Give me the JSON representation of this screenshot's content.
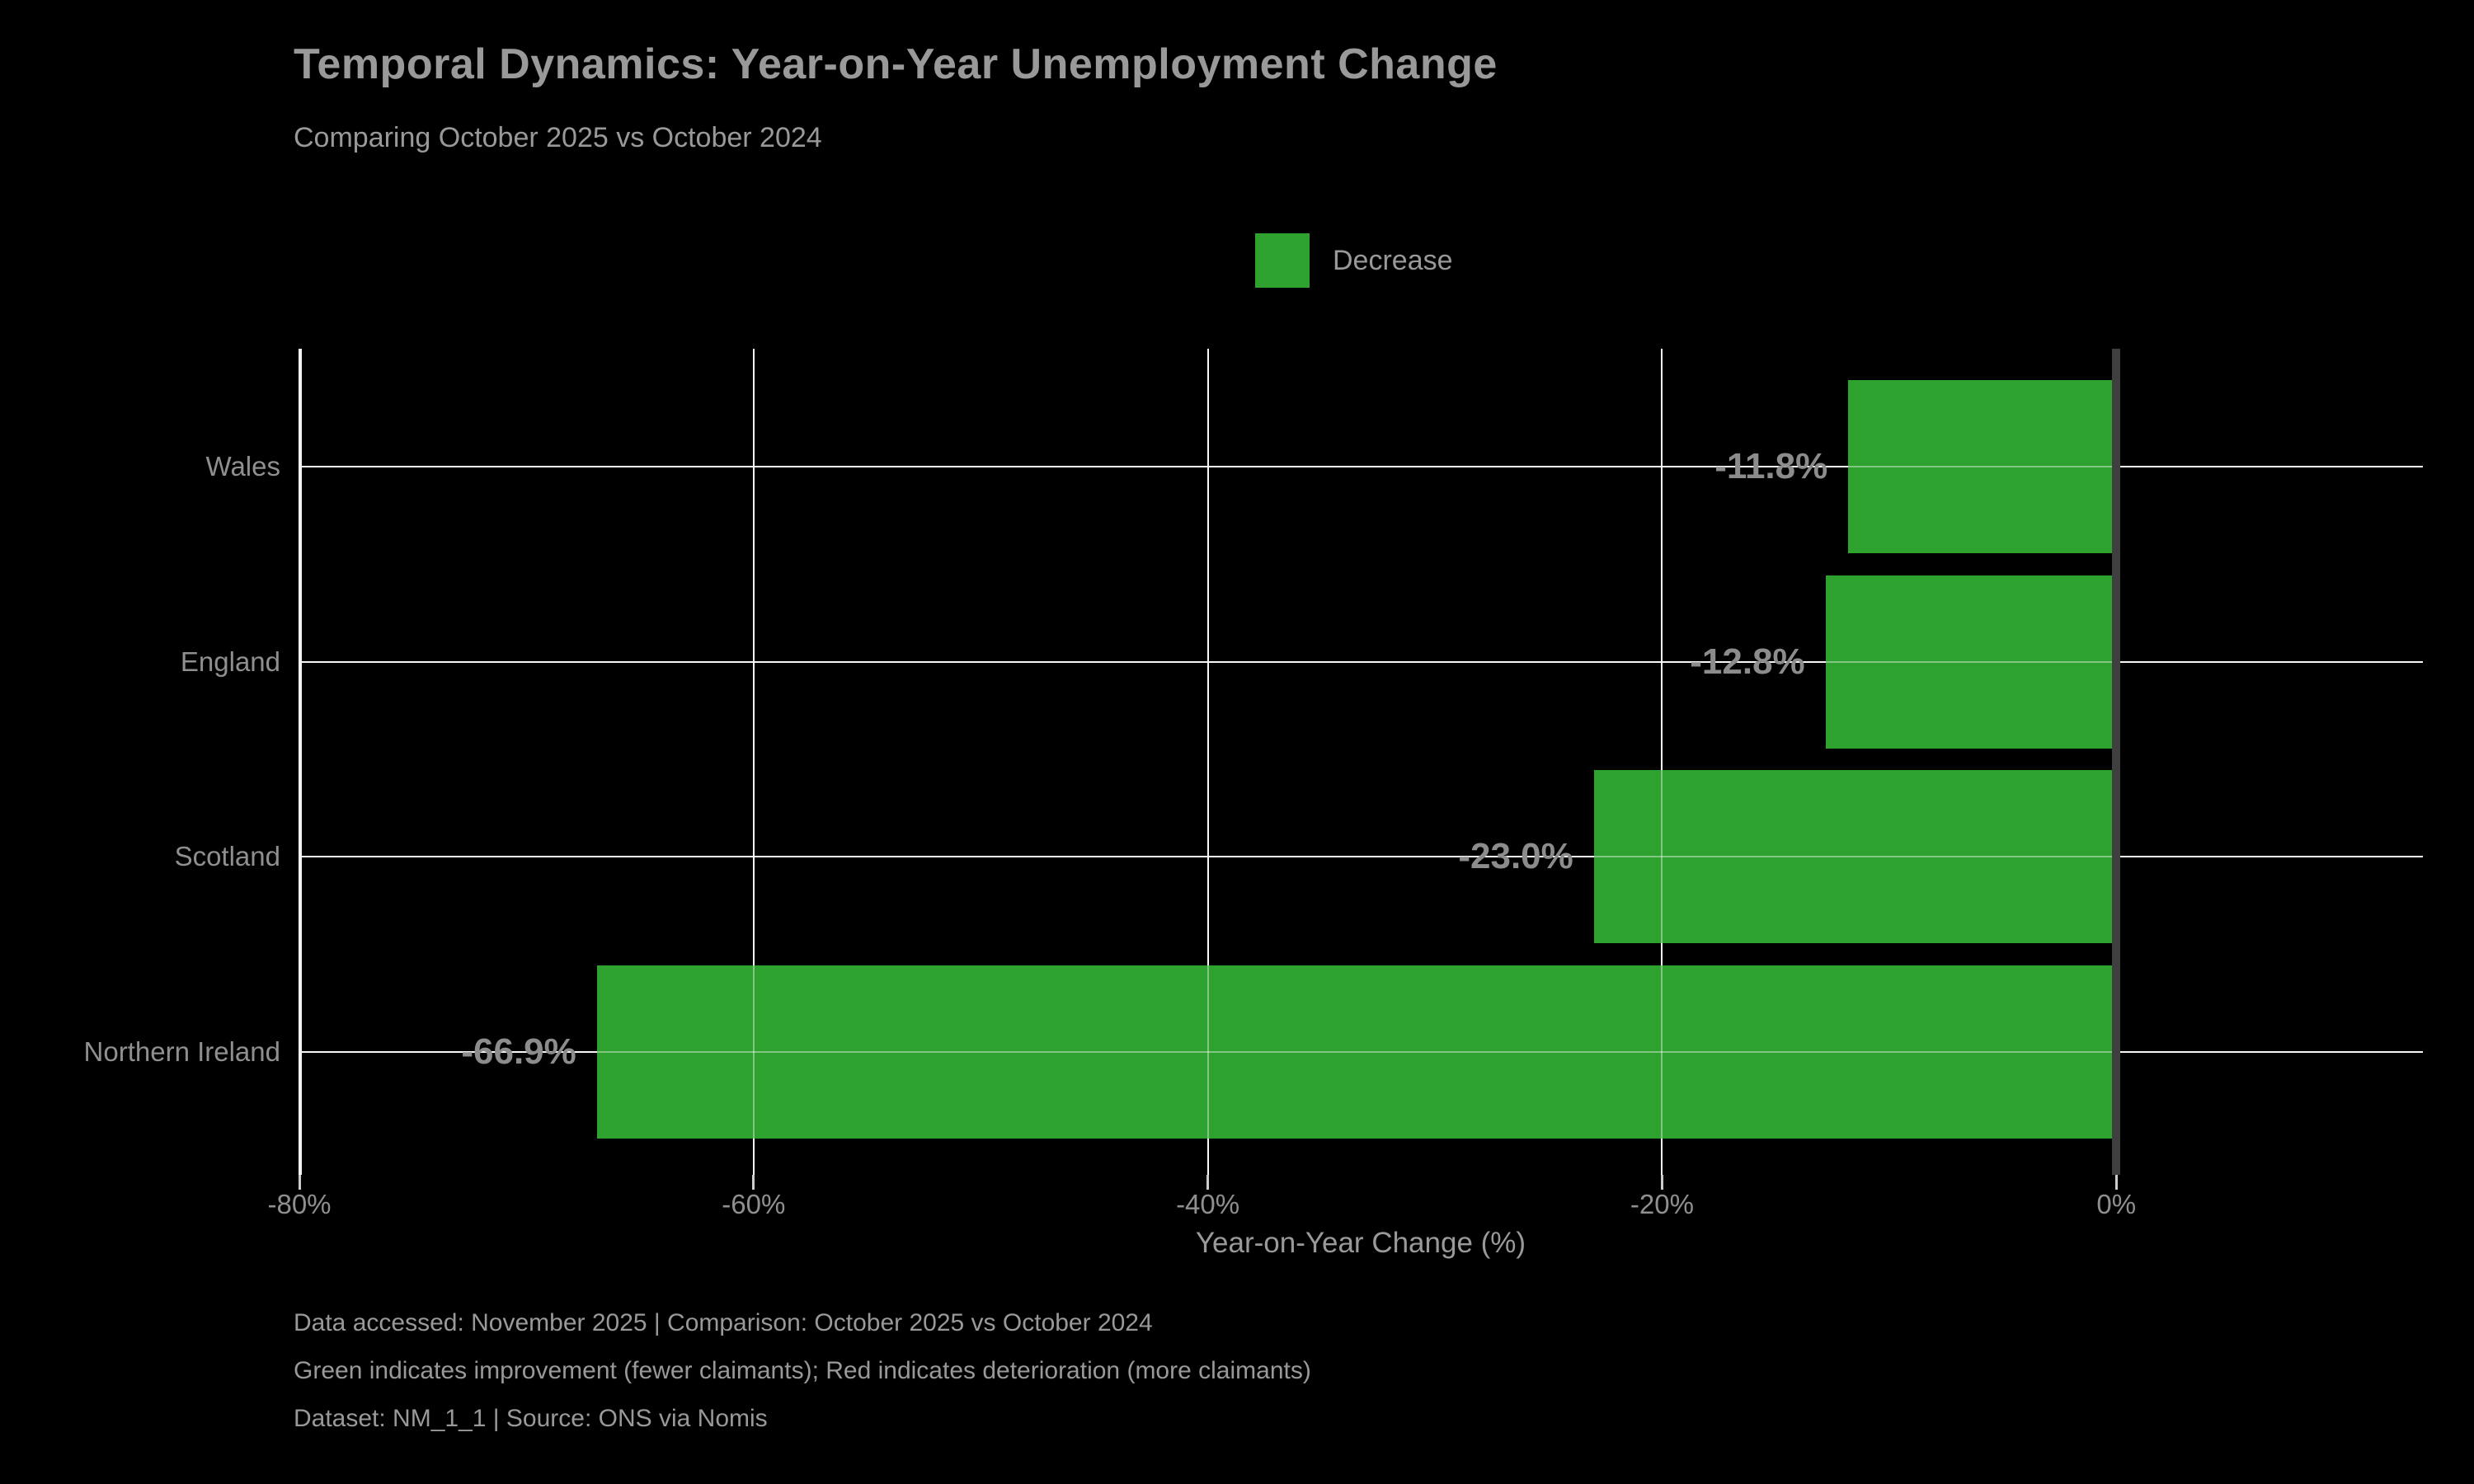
{
  "title": "Temporal Dynamics: Year-on-Year Unemployment Change",
  "subtitle": "Comparing October 2025 vs October 2024",
  "legend": {
    "label": "Decrease",
    "color": "#2ea22e"
  },
  "chart_data": {
    "type": "bar",
    "orientation": "horizontal",
    "title": "Temporal Dynamics: Year-on-Year Unemployment Change",
    "subtitle": "Comparing October 2025 vs October 2024",
    "categories": [
      "Wales",
      "England",
      "Scotland",
      "Northern Ireland"
    ],
    "values": [
      -11.8,
      -12.8,
      -23.0,
      -66.9
    ],
    "value_labels": [
      "-11.8%",
      "-12.8%",
      "-23.0%",
      "-66.9%"
    ],
    "bar_color": "#2ea22e",
    "xlabel": "Year-on-Year Change (%)",
    "ylabel": "",
    "xlim": [
      -80,
      13.5
    ],
    "x_ticks": [
      -80,
      -60,
      -40,
      -20,
      0
    ],
    "x_tick_labels": [
      "-80%",
      "-60%",
      "-40%",
      "-20%",
      "0%"
    ],
    "grid": true,
    "legend_entries": [
      "Decrease"
    ],
    "legend_position": "top-center",
    "background_color": "#000000",
    "zero_line_color": "#3f3f3f"
  },
  "footer": {
    "lines": [
      "Data accessed: November 2025 | Comparison: October 2025 vs October 2024",
      "Green indicates improvement (fewer claimants); Red indicates deterioration (more claimants)",
      "Dataset: NM_1_1 | Source: ONS via Nomis"
    ]
  }
}
